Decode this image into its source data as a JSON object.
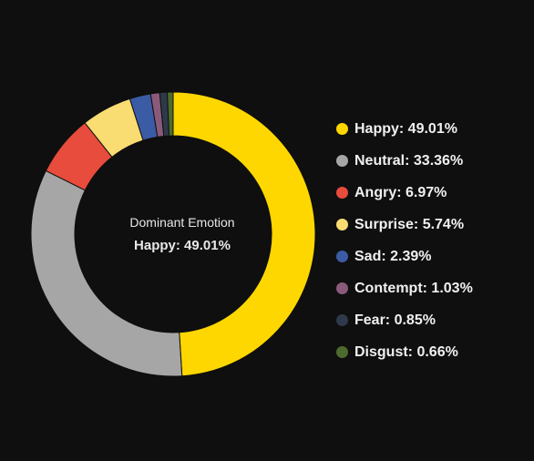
{
  "center": {
    "title": "Dominant Emotion",
    "value": "Happy: 49.01%"
  },
  "chart_data": {
    "type": "pie",
    "style": "donut",
    "legend_position": "right",
    "slices": [
      {
        "label": "Happy",
        "value": 49.01,
        "legend": "Happy: 49.01%",
        "color": "#FFD700"
      },
      {
        "label": "Neutral",
        "value": 33.36,
        "legend": "Neutral: 33.36%",
        "color": "#A6A6A6"
      },
      {
        "label": "Angry",
        "value": 6.97,
        "legend": "Angry: 6.97%",
        "color": "#E74C3C"
      },
      {
        "label": "Surprise",
        "value": 5.74,
        "legend": "Surprise: 5.74%",
        "color": "#F9DC72"
      },
      {
        "label": "Sad",
        "value": 2.39,
        "legend": "Sad: 2.39%",
        "color": "#3B5BA5"
      },
      {
        "label": "Contempt",
        "value": 1.03,
        "legend": "Contempt: 1.03%",
        "color": "#8A5A7A"
      },
      {
        "label": "Fear",
        "value": 0.85,
        "legend": "Fear: 0.85%",
        "color": "#2E3A4A"
      },
      {
        "label": "Disgust",
        "value": 0.66,
        "legend": "Disgust: 0.66%",
        "color": "#4D6B2E"
      }
    ]
  }
}
